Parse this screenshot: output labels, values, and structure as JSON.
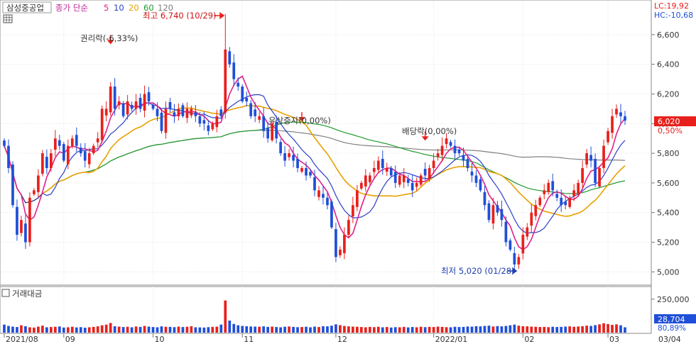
{
  "header": {
    "stock_name": "삼성중공업",
    "ma_label": "종가 단순",
    "ma_periods": [
      {
        "label": "5",
        "color": "#e0218a"
      },
      {
        "label": "10",
        "color": "#2a3fc8"
      },
      {
        "label": "20",
        "color": "#e8a000"
      },
      {
        "label": "60",
        "color": "#1f9a2e"
      },
      {
        "label": "120",
        "color": "#808080"
      }
    ],
    "lc": "LC:19,92",
    "hc": "HC:-10,68"
  },
  "volume_panel": {
    "title": "거래대금"
  },
  "price_badge": {
    "price": "6,020",
    "change": "0,50%"
  },
  "volume_badge": {
    "value": "28,704",
    "pct": "80,89%"
  },
  "annotations": {
    "high": "최고 6,740 (10/29)",
    "low": "최저 5,020 (01/28)",
    "ex_rights": "권리락(-6,33%)",
    "bonus_issue": "유상증자(0,00%)",
    "ex_dividend": "배당락(0,00%)"
  },
  "chart_data": {
    "type": "candlestick",
    "colors": {
      "up": "#e8201c",
      "down": "#1f4fd8"
    },
    "x_month_labels": [
      {
        "label": "2021/08",
        "index": 0
      },
      {
        "label": "09",
        "index": 14
      },
      {
        "label": "10",
        "index": 35
      },
      {
        "label": "11",
        "index": 56
      },
      {
        "label": "12",
        "index": 78
      },
      {
        "label": "2022/01",
        "index": 101
      },
      {
        "label": "02",
        "index": 122
      },
      {
        "label": "03",
        "index": 142
      },
      {
        "label": "03/04",
        "index": 151
      }
    ],
    "price_ticks": [
      "6,600",
      "6,400",
      "6,200",
      "6,000",
      "5,800",
      "5,600",
      "5,400",
      "5,200",
      "5,000"
    ],
    "price_tick_values": [
      6600,
      6400,
      6200,
      6000,
      5800,
      5600,
      5400,
      5200,
      5000
    ],
    "price_range": [
      4920,
      6810
    ],
    "volume_ticks": [
      "250,000"
    ],
    "volume_range": [
      0,
      270000
    ],
    "high_marker": {
      "index": 52,
      "value": 6740
    },
    "low_marker": {
      "index": 121,
      "value": 5020
    },
    "event_markers": [
      {
        "key": "ex_rights",
        "index": 25,
        "value": 6540
      },
      {
        "key": "bonus_issue",
        "index": 70,
        "value": 6020
      },
      {
        "key": "ex_dividend",
        "index": 99,
        "value": 5890
      }
    ],
    "closes": [
      5850,
      5700,
      5450,
      5250,
      5350,
      5200,
      5500,
      5550,
      5650,
      5800,
      5700,
      5800,
      5900,
      5850,
      5750,
      5850,
      5900,
      5850,
      5800,
      5750,
      5800,
      5850,
      5900,
      6100,
      6100,
      6250,
      6100,
      6150,
      6050,
      6150,
      6100,
      6150,
      6100,
      6200,
      6150,
      6100,
      6050,
      5950,
      6100,
      6100,
      6050,
      6100,
      6050,
      6100,
      6100,
      6050,
      6000,
      6000,
      5950,
      6000,
      6050,
      6050,
      6500,
      6400,
      6300,
      6250,
      6150,
      6150,
      6050,
      6050,
      6050,
      5950,
      5900,
      6000,
      5900,
      5800,
      5750,
      5800,
      5750,
      5700,
      5700,
      5650,
      5650,
      5550,
      5550,
      5500,
      5450,
      5300,
      5100,
      5150,
      5250,
      5350,
      5450,
      5550,
      5600,
      5650,
      5650,
      5700,
      5750,
      5700,
      5700,
      5650,
      5600,
      5650,
      5650,
      5600,
      5550,
      5600,
      5650,
      5650,
      5700,
      5750,
      5800,
      5850,
      5900,
      5850,
      5800,
      5800,
      5750,
      5700,
      5650,
      5600,
      5550,
      5450,
      5350,
      5450,
      5400,
      5350,
      5200,
      5150,
      5050,
      5100,
      5250,
      5300,
      5400,
      5450,
      5500,
      5550,
      5600,
      5550,
      5500,
      5450,
      5450,
      5500,
      5550,
      5600,
      5700,
      5800,
      5750,
      5600,
      5700,
      5850,
      5950,
      6050,
      6100,
      6050,
      6020
    ],
    "volumes": [
      60000,
      50000,
      45000,
      42000,
      55000,
      48000,
      40000,
      38000,
      45000,
      52000,
      40000,
      42000,
      44000,
      46000,
      38000,
      40000,
      44000,
      39000,
      41000,
      37000,
      40000,
      43000,
      47000,
      55000,
      60000,
      72000,
      48000,
      45000,
      42000,
      44000,
      40000,
      46000,
      43000,
      50000,
      45000,
      42000,
      40000,
      47000,
      44000,
      43000,
      41000,
      45000,
      42000,
      44000,
      48000,
      40000,
      39000,
      38000,
      41000,
      43000,
      45000,
      60000,
      240000,
      90000,
      65000,
      55000,
      50000,
      48000,
      46000,
      45000,
      44000,
      47000,
      43000,
      45000,
      42000,
      40000,
      44000,
      46000,
      43000,
      41000,
      42000,
      44000,
      40000,
      45000,
      42000,
      48000,
      47000,
      52000,
      62000,
      56000,
      50000,
      47000,
      45000,
      44000,
      42000,
      40000,
      43000,
      41000,
      44000,
      40000,
      42000,
      38000,
      41000,
      40000,
      43000,
      39000,
      42000,
      40000,
      44000,
      41000,
      43000,
      42000,
      45000,
      43000,
      41000,
      40000,
      44000,
      42000,
      43000,
      46000,
      45000,
      48000,
      47000,
      50000,
      52000,
      46000,
      49000,
      47000,
      50000,
      55000,
      60000,
      52000,
      48000,
      47000,
      45000,
      44000,
      42000,
      43000,
      41000,
      44000,
      42000,
      43000,
      45000,
      47000,
      44000,
      46000,
      48000,
      52000,
      50000,
      56000,
      62000,
      70000,
      64000,
      58000,
      62000,
      55000,
      40000
    ]
  }
}
